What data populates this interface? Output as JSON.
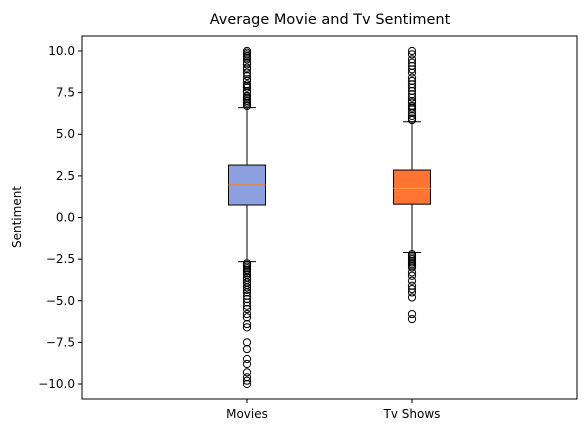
{
  "chart_data": {
    "type": "boxplot",
    "title": "Average Movie and Tv Sentiment",
    "xlabel": "",
    "ylabel": "Sentiment",
    "ylim": [
      -10.9,
      10.9
    ],
    "yticks": [
      -10.0,
      -7.5,
      -5.0,
      -2.5,
      0.0,
      2.5,
      5.0,
      7.5,
      10.0
    ],
    "ytick_labels": [
      "−10.0",
      "−7.5",
      "−5.0",
      "−2.5",
      "0.0",
      "2.5",
      "5.0",
      "7.5",
      "10.0"
    ],
    "categories": [
      "Movies",
      "Tv Shows"
    ],
    "grid": false,
    "series": [
      {
        "category": "Movies",
        "color": "#8ca0e0",
        "median_color": "#ff7f0e",
        "q1": 0.75,
        "median": 1.95,
        "q3": 3.15,
        "whisker_low": -2.65,
        "whisker_high": 6.6,
        "outliers_high": [
          6.7,
          6.8,
          6.9,
          7.0,
          7.1,
          7.2,
          7.3,
          7.5,
          7.6,
          7.8,
          7.9,
          8.0,
          8.2,
          8.3,
          8.5,
          8.7,
          8.9,
          9.0,
          9.2,
          9.3,
          9.5,
          9.6,
          9.7,
          9.8,
          9.9,
          10.0
        ],
        "outliers_low": [
          -2.75,
          -2.85,
          -2.95,
          -3.05,
          -3.15,
          -3.25,
          -3.35,
          -3.45,
          -3.6,
          -3.75,
          -3.9,
          -4.05,
          -4.2,
          -4.35,
          -4.5,
          -4.7,
          -4.9,
          -5.1,
          -5.3,
          -5.5,
          -5.8,
          -6.0,
          -6.4,
          -6.6,
          -7.5,
          -7.9,
          -8.5,
          -8.8,
          -9.3,
          -9.6,
          -9.8,
          -10.0
        ]
      },
      {
        "category": "Tv Shows",
        "color": "#ff7433",
        "median_color": "#ff9a3c",
        "q1": 0.8,
        "median": 1.75,
        "q3": 2.85,
        "whisker_low": -2.1,
        "whisker_high": 5.75,
        "outliers_high": [
          5.85,
          5.95,
          6.1,
          6.3,
          6.5,
          6.6,
          6.7,
          6.9,
          7.0,
          7.2,
          7.4,
          7.6,
          7.8,
          8.0,
          8.2,
          8.4,
          8.7,
          8.9,
          9.1,
          9.3,
          9.5,
          9.8,
          10.0
        ],
        "outliers_low": [
          -2.2,
          -2.3,
          -2.4,
          -2.5,
          -2.6,
          -2.7,
          -2.8,
          -2.9,
          -3.0,
          -3.3,
          -3.5,
          -3.8,
          -4.1,
          -4.3,
          -4.5,
          -4.8,
          -5.8,
          -6.1
        ]
      }
    ]
  }
}
